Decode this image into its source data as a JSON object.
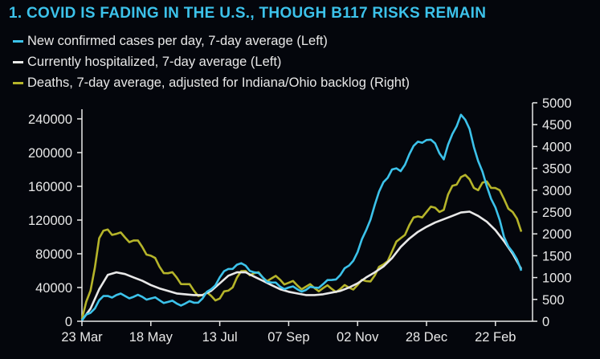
{
  "title": "1. COVID IS FADING IN THE U.S., THOUGH B117 RISKS REMAIN",
  "colors": {
    "title": "#3cc2ea",
    "cases": "#3cc2ea",
    "hospitalized": "#e8e8e8",
    "deaths": "#b5b42a",
    "axis": "#e8e8e8",
    "background": "#04060c"
  },
  "chart_data": {
    "type": "line",
    "x_tick_labels": [
      "23 Mar",
      "18 May",
      "13 Jul",
      "07 Sep",
      "02 Nov",
      "28 Dec",
      "22 Feb"
    ],
    "x_ticks_week_offset": [
      0,
      8,
      16,
      24,
      32,
      40,
      48
    ],
    "xlim_weeks": [
      0,
      48
    ],
    "y_left": {
      "ticks": [
        0,
        40000,
        80000,
        120000,
        160000,
        200000,
        240000
      ],
      "tick_labels": [
        "0",
        "40000",
        "80000",
        "120000",
        "160000",
        "200000",
        "240000"
      ],
      "lim": [
        0,
        250000
      ]
    },
    "y_right": {
      "ticks": [
        0,
        500,
        1000,
        1500,
        2000,
        2500,
        3000,
        3500,
        4000,
        4500,
        5000
      ],
      "tick_labels": [
        "0",
        "500",
        "1000",
        "1500",
        "2000",
        "2500",
        "3000",
        "3500",
        "4000",
        "4500",
        "5000"
      ],
      "lim": [
        0,
        5000
      ]
    },
    "legend_placement": "top-left",
    "grid": false,
    "series": [
      {
        "name": "New confirmed cases per day, 7-day average (Left)",
        "axis": "left",
        "color": "#3cc2ea",
        "points": [
          [
            0,
            1000
          ],
          [
            1,
            10000
          ],
          [
            2,
            25000
          ],
          [
            3,
            30000
          ],
          [
            4,
            31000
          ],
          [
            5,
            30000
          ],
          [
            6,
            29000
          ],
          [
            7,
            29000
          ],
          [
            8,
            27000
          ],
          [
            9,
            25000
          ],
          [
            10,
            23000
          ],
          [
            11,
            21000
          ],
          [
            12,
            21000
          ],
          [
            13,
            22000
          ],
          [
            14,
            27000
          ],
          [
            15,
            38000
          ],
          [
            16,
            52000
          ],
          [
            17,
            62000
          ],
          [
            18,
            67000
          ],
          [
            19,
            66000
          ],
          [
            20,
            58000
          ],
          [
            21,
            52000
          ],
          [
            22,
            46000
          ],
          [
            23,
            41000
          ],
          [
            24,
            40000
          ],
          [
            25,
            38000
          ],
          [
            26,
            37000
          ],
          [
            27,
            40000
          ],
          [
            28,
            44000
          ],
          [
            29,
            49000
          ],
          [
            30,
            55000
          ],
          [
            31,
            66000
          ],
          [
            32,
            82000
          ],
          [
            33,
            108000
          ],
          [
            34,
            138000
          ],
          [
            35,
            165000
          ],
          [
            36,
            180000
          ],
          [
            37,
            178000
          ],
          [
            38,
            198000
          ],
          [
            39,
            213000
          ],
          [
            40,
            215000
          ],
          [
            41,
            211000
          ],
          [
            42,
            192000
          ],
          [
            43,
            222000
          ],
          [
            44,
            245000
          ],
          [
            45,
            228000
          ],
          [
            46,
            190000
          ],
          [
            47,
            160000
          ],
          [
            48,
            135000
          ],
          [
            49,
            100000
          ],
          [
            50,
            82000
          ],
          [
            51,
            60000
          ]
        ]
      },
      {
        "name": "Currently hospitalized, 7-day average (Left)",
        "axis": "left",
        "color": "#e8e8e8",
        "points": [
          [
            0,
            1000
          ],
          [
            1,
            15000
          ],
          [
            2,
            38000
          ],
          [
            3,
            55000
          ],
          [
            4,
            58000
          ],
          [
            5,
            56000
          ],
          [
            6,
            52000
          ],
          [
            7,
            48000
          ],
          [
            8,
            43000
          ],
          [
            9,
            39000
          ],
          [
            10,
            36000
          ],
          [
            11,
            33000
          ],
          [
            12,
            32000
          ],
          [
            13,
            31000
          ],
          [
            14,
            31000
          ],
          [
            15,
            36000
          ],
          [
            16,
            45000
          ],
          [
            17,
            54000
          ],
          [
            18,
            58000
          ],
          [
            19,
            58000
          ],
          [
            20,
            53000
          ],
          [
            21,
            48000
          ],
          [
            22,
            43000
          ],
          [
            23,
            38000
          ],
          [
            24,
            35000
          ],
          [
            25,
            33000
          ],
          [
            26,
            31000
          ],
          [
            27,
            31000
          ],
          [
            28,
            32000
          ],
          [
            29,
            34000
          ],
          [
            30,
            36000
          ],
          [
            31,
            40000
          ],
          [
            32,
            45000
          ],
          [
            33,
            52000
          ],
          [
            34,
            58000
          ],
          [
            35,
            65000
          ],
          [
            36,
            75000
          ],
          [
            37,
            88000
          ],
          [
            38,
            98000
          ],
          [
            39,
            106000
          ],
          [
            40,
            112000
          ],
          [
            41,
            117000
          ],
          [
            42,
            121000
          ],
          [
            43,
            125000
          ],
          [
            44,
            129000
          ],
          [
            45,
            130000
          ],
          [
            46,
            125000
          ],
          [
            47,
            118000
          ],
          [
            48,
            108000
          ],
          [
            49,
            95000
          ],
          [
            50,
            80000
          ],
          [
            51,
            62000
          ]
        ]
      },
      {
        "name": "Deaths, 7-day average, adjusted for Indiana/Ohio backlog (Right)",
        "axis": "right",
        "color": "#b5b42a",
        "points": [
          [
            0,
            50
          ],
          [
            1,
            700
          ],
          [
            2,
            1900
          ],
          [
            3,
            2100
          ],
          [
            4,
            2000
          ],
          [
            5,
            1920
          ],
          [
            6,
            1850
          ],
          [
            7,
            1700
          ],
          [
            8,
            1500
          ],
          [
            9,
            1250
          ],
          [
            10,
            1100
          ],
          [
            11,
            1000
          ],
          [
            12,
            850
          ],
          [
            13,
            700
          ],
          [
            14,
            600
          ],
          [
            15,
            580
          ],
          [
            16,
            520
          ],
          [
            17,
            700
          ],
          [
            18,
            1000
          ],
          [
            19,
            1150
          ],
          [
            20,
            1100
          ],
          [
            21,
            1000
          ],
          [
            22,
            980
          ],
          [
            23,
            950
          ],
          [
            24,
            880
          ],
          [
            25,
            820
          ],
          [
            26,
            790
          ],
          [
            27,
            760
          ],
          [
            28,
            760
          ],
          [
            29,
            740
          ],
          [
            30,
            740
          ],
          [
            31,
            770
          ],
          [
            32,
            830
          ],
          [
            33,
            920
          ],
          [
            34,
            1050
          ],
          [
            35,
            1300
          ],
          [
            36,
            1600
          ],
          [
            37,
            1900
          ],
          [
            38,
            2200
          ],
          [
            39,
            2400
          ],
          [
            40,
            2500
          ],
          [
            41,
            2600
          ],
          [
            42,
            2550
          ],
          [
            43,
            3100
          ],
          [
            44,
            3300
          ],
          [
            45,
            3250
          ],
          [
            46,
            3000
          ],
          [
            47,
            3200
          ],
          [
            48,
            3050
          ],
          [
            49,
            2800
          ],
          [
            50,
            2500
          ],
          [
            51,
            2050
          ]
        ]
      }
    ]
  }
}
